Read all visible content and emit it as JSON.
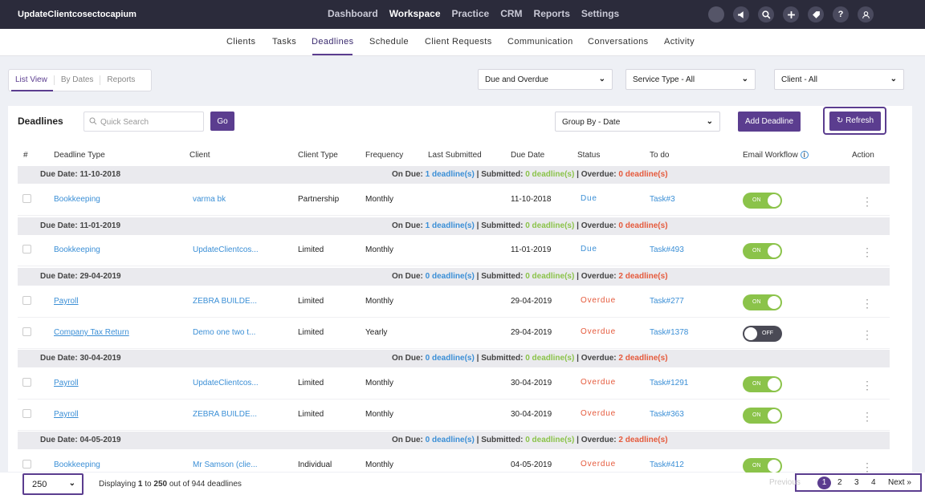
{
  "app_title": "UpdateClientcosectocapium",
  "main_nav": [
    "Dashboard",
    "Workspace",
    "Practice",
    "CRM",
    "Reports",
    "Settings"
  ],
  "top_icons": [
    "circle-icon",
    "megaphone-icon",
    "search-icon",
    "plus-icon",
    "tag-icon",
    "help-icon",
    "user-icon"
  ],
  "sub_nav": [
    "Clients",
    "Tasks",
    "Deadlines",
    "Schedule",
    "Client Requests",
    "Communication",
    "Conversations",
    "Activity"
  ],
  "view_tabs": [
    "List View",
    "By Dates",
    "Reports"
  ],
  "filters": {
    "due": "Due and Overdue",
    "service": "Service Type - All",
    "client": "Client - All"
  },
  "panel": {
    "title": "Deadlines",
    "search_placeholder": "Quick Search",
    "go": "Go",
    "group_by": "Group By - Date",
    "add": "Add Deadline",
    "refresh": "Refresh"
  },
  "columns": [
    "#",
    "Deadline Type",
    "Client",
    "Client Type",
    "Frequency",
    "Last Submitted",
    "Due Date",
    "Status",
    "To do",
    "Email Workflow",
    "Action"
  ],
  "labels": {
    "on_due": "On Due:",
    "submitted": "Submitted:",
    "overdue": "Overdue:",
    "sep": "|"
  },
  "groups": [
    {
      "date": "Due Date: 11-10-2018",
      "on_due": "1 deadline(s)",
      "submitted": "0 deadline(s)",
      "overdue": "0 deadline(s)"
    },
    {
      "date": "Due Date: 11-01-2019",
      "on_due": "1 deadline(s)",
      "submitted": "0 deadline(s)",
      "overdue": "0 deadline(s)"
    },
    {
      "date": "Due Date: 29-04-2019",
      "on_due": "0 deadline(s)",
      "submitted": "0 deadline(s)",
      "overdue": "2 deadline(s)"
    },
    {
      "date": "Due Date: 30-04-2019",
      "on_due": "0 deadline(s)",
      "submitted": "0 deadline(s)",
      "overdue": "2 deadline(s)"
    },
    {
      "date": "Due Date: 04-05-2019",
      "on_due": "0 deadline(s)",
      "submitted": "0 deadline(s)",
      "overdue": "2 deadline(s)"
    }
  ],
  "rows": [
    {
      "type": "Bookkeeping",
      "client": "varma bk",
      "client_type": "Partnership",
      "frequency": "Monthly",
      "due": "11-10-2018",
      "status": "Due",
      "todo": "Task#3",
      "email": "ON"
    },
    {
      "type": "Bookkeeping",
      "client": "UpdateClientcos...",
      "client_type": "Limited",
      "frequency": "Monthly",
      "due": "11-01-2019",
      "status": "Due",
      "todo": "Task#493",
      "email": "ON"
    },
    {
      "type": "Payroll",
      "client": "ZEBRA BUILDE...",
      "client_type": "Limited",
      "frequency": "Monthly",
      "due": "29-04-2019",
      "status": "Overdue",
      "todo": "Task#277",
      "email": "ON"
    },
    {
      "type": "Company Tax Return",
      "client": "Demo one two t...",
      "client_type": "Limited",
      "frequency": "Yearly",
      "due": "29-04-2019",
      "status": "Overdue",
      "todo": "Task#1378",
      "email": "OFF"
    },
    {
      "type": "Payroll",
      "client": "UpdateClientcos...",
      "client_type": "Limited",
      "frequency": "Monthly",
      "due": "30-04-2019",
      "status": "Overdue",
      "todo": "Task#1291",
      "email": "ON"
    },
    {
      "type": "Payroll",
      "client": "ZEBRA BUILDE...",
      "client_type": "Limited",
      "frequency": "Monthly",
      "due": "30-04-2019",
      "status": "Overdue",
      "todo": "Task#363",
      "email": "ON"
    },
    {
      "type": "Bookkeeping",
      "client": "Mr Samson (clie...",
      "client_type": "Individual",
      "frequency": "Monthly",
      "due": "04-05-2019",
      "status": "Overdue",
      "todo": "Task#412",
      "email": "ON"
    }
  ],
  "footer": {
    "page_size": "250",
    "display_prefix": "Displaying",
    "from": "1",
    "to_word": "to",
    "to": "250",
    "out_of": "out of 944 deadlines",
    "prev": "Previous",
    "pages": [
      "1",
      "2",
      "3",
      "4"
    ],
    "next": "Next",
    "next_icon": "»"
  },
  "colors": {
    "accent": "#5b3d8f",
    "link": "#3b8fd6",
    "green": "#8bc34a",
    "red": "#e55a3c",
    "topbar": "#2b2b3b"
  }
}
